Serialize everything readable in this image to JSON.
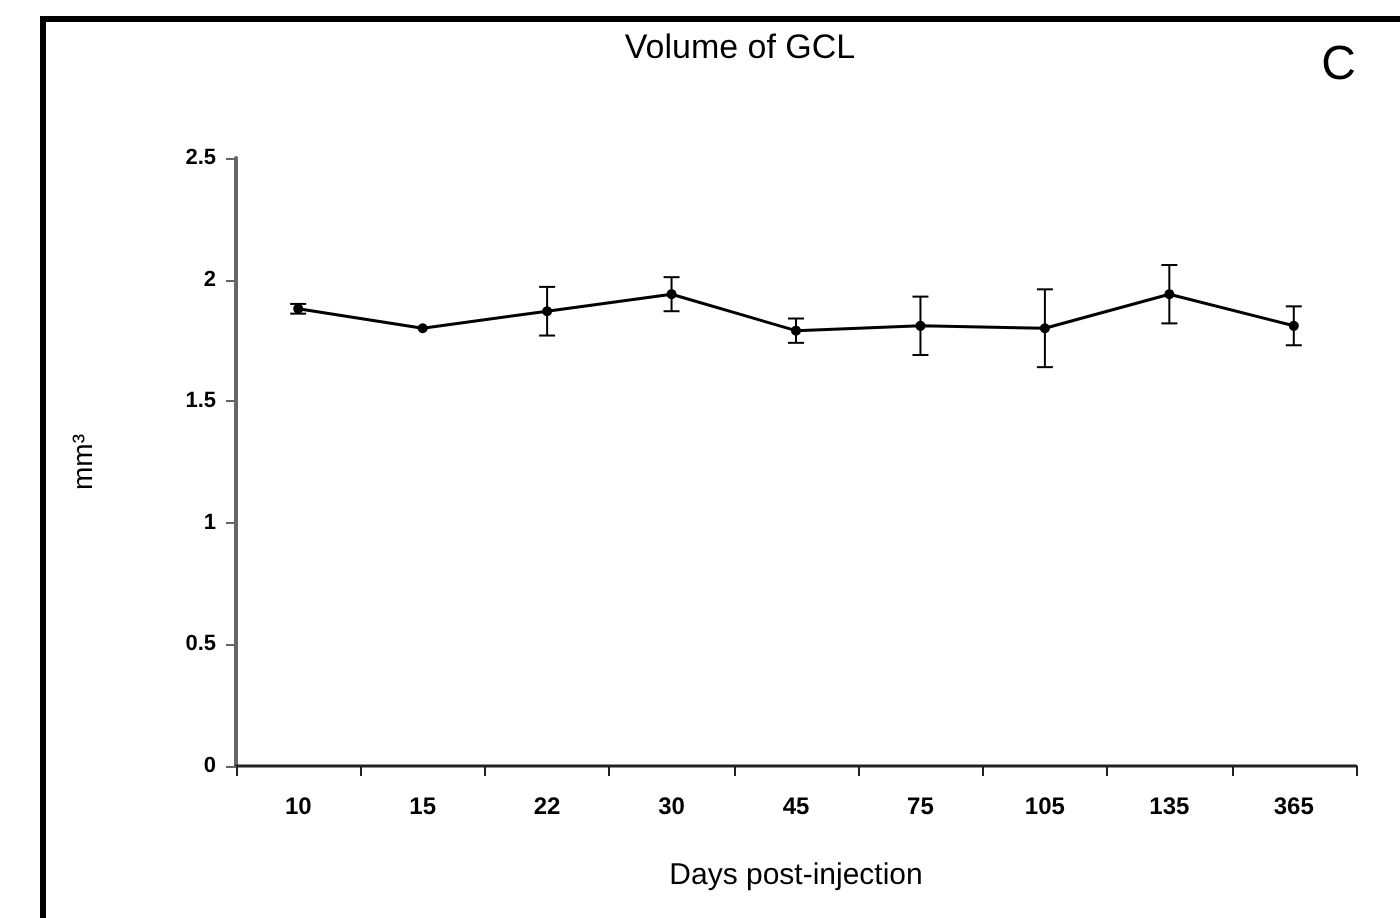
{
  "chart_data": {
    "type": "line",
    "title": "Volume of GCL",
    "xlabel": "Days post-injection",
    "ylabel": "mm³",
    "annotations": [
      "C"
    ],
    "categories": [
      "10",
      "15",
      "22",
      "30",
      "45",
      "75",
      "105",
      "135",
      "365"
    ],
    "values": [
      1.88,
      1.8,
      1.87,
      1.94,
      1.79,
      1.81,
      1.8,
      1.94,
      1.81
    ],
    "errors": [
      0.02,
      null,
      0.1,
      0.07,
      0.05,
      0.12,
      0.16,
      0.12,
      0.08
    ],
    "color": "#000000",
    "ylim": [
      0,
      2.5
    ],
    "yticks": [
      0,
      0.5,
      1,
      1.5,
      2,
      2.5
    ],
    "grid": false,
    "marker": "circle",
    "line_style": "solid"
  }
}
